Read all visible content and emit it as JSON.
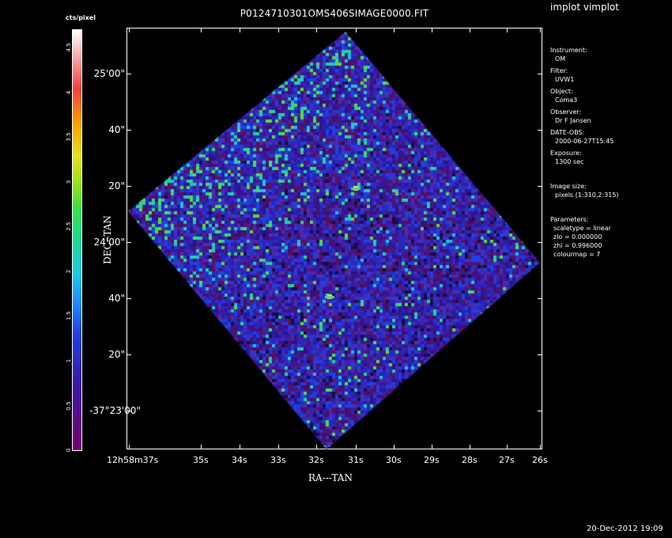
{
  "app_label": "implot vimplot",
  "title": "P0124710301OMS406SIMAGE0000.FIT",
  "colorbar": {
    "title": "cts/pixel",
    "ticks": [
      "0",
      "0.5",
      "1",
      "1.5",
      "2",
      "2.5",
      "3",
      "3.5",
      "4",
      "4.5"
    ]
  },
  "y_axis": {
    "label": "DEC--TAN",
    "ticks": [
      "25'00\"",
      "40\"",
      "20\"",
      "24'00\"",
      "40\"",
      "20\"",
      "-37°23'00\""
    ]
  },
  "x_axis": {
    "label": "RA---TAN",
    "ticks": [
      "12h58m37s",
      "35s",
      "34s",
      "33s",
      "32s",
      "31s",
      "30s",
      "29s",
      "28s",
      "27s",
      "26s"
    ]
  },
  "info": {
    "instrument_label": "Instrument:",
    "instrument": "OM",
    "filter_label": "Filter:",
    "filter": "UVW1",
    "object_label": "Object:",
    "object": "Coma3",
    "observer_label": "Observer:",
    "observer": "Dr F Jansen",
    "date_label": "DATE-OBS:",
    "date": "2000-06-27T15:45",
    "exposure_label": "Exposure:",
    "exposure": "1300 sec",
    "image_size_label": "Image size:",
    "image_size": "pixels (1:310,2:315)",
    "params_label": "Parameters:",
    "p1": "scaletype = linear",
    "p2": "zlo = 0.000000",
    "p3": "zhi = 0.996000",
    "p4": "colourmap =    7"
  },
  "timestamp": "20-Dec-2012 19:09"
}
